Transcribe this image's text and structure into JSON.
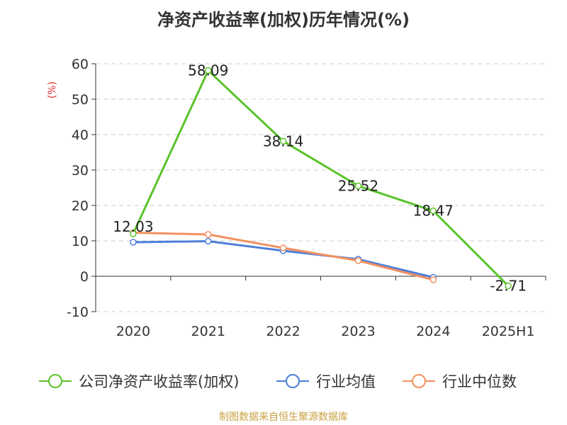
{
  "chart_data": {
    "type": "line",
    "title": "净资产收益率(加权)历年情况(%)",
    "ylabel": "(%)",
    "xlabel": "",
    "categories": [
      "2020",
      "2021",
      "2022",
      "2023",
      "2024",
      "2025H1"
    ],
    "ylim": [
      -10,
      60
    ],
    "yticks": [
      -10,
      0,
      10,
      20,
      30,
      40,
      50,
      60
    ],
    "grid": true,
    "legend_position": "bottom",
    "series": [
      {
        "name": "公司净资产收益率(加权)",
        "color": "#5bc32b",
        "values": [
          12.03,
          58.09,
          38.14,
          25.52,
          18.47,
          -2.71
        ],
        "labels": [
          "12.03",
          "58.09",
          "38.14",
          "25.52",
          "18.47",
          "-2.71"
        ]
      },
      {
        "name": "行业均值",
        "color": "#4e7fd8",
        "values": [
          9.6,
          9.9,
          7.2,
          4.8,
          -0.3,
          null
        ]
      },
      {
        "name": "行业中位数",
        "color": "#f39060",
        "values": [
          12.3,
          11.8,
          8.0,
          4.4,
          -1.0,
          null
        ]
      }
    ]
  },
  "footer": {
    "source": "制图数据来自恒生聚源数据库"
  },
  "colors": {
    "ylabel": "#e03030",
    "axis_text": "#333333",
    "grid": "#cccccc",
    "source": "#c8a040"
  }
}
